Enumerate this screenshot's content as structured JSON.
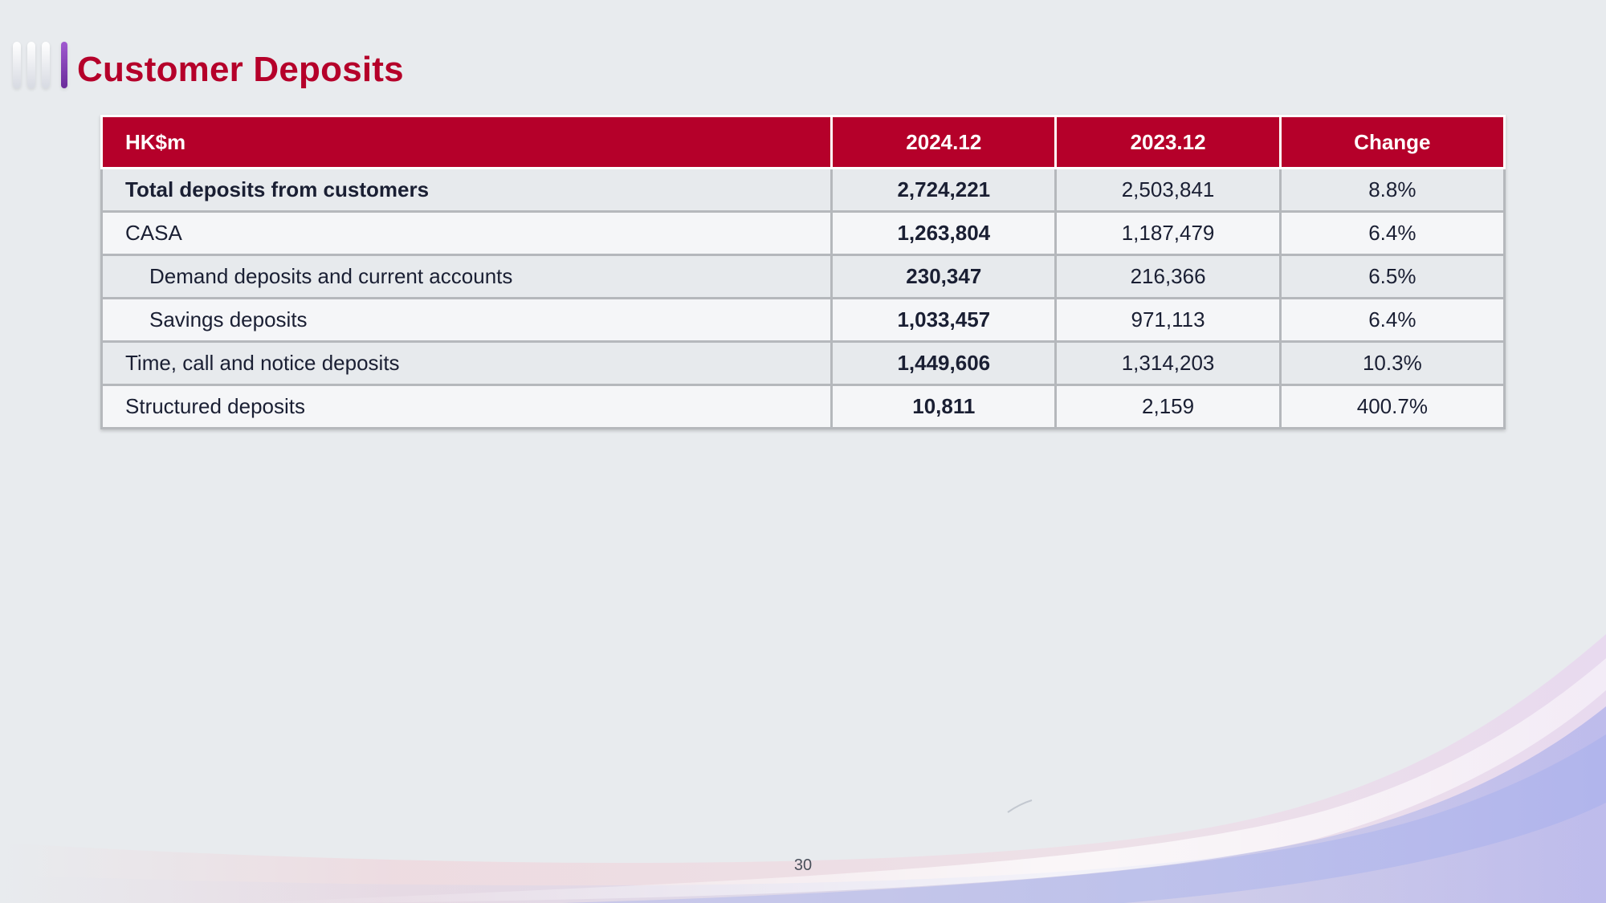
{
  "slide": {
    "title": "Customer Deposits",
    "page_number": "30"
  },
  "table": {
    "headers": [
      "HK$m",
      "2024.12",
      "2023.12",
      "Change"
    ],
    "rows": [
      {
        "label": "Total deposits from customers",
        "v2024": "2,724,221",
        "v2023": "2,503,841",
        "change": "8.8%"
      },
      {
        "label": "CASA",
        "v2024": "1,263,804",
        "v2023": "1,187,479",
        "change": "6.4%"
      },
      {
        "label": "Demand deposits and current accounts",
        "v2024": "230,347",
        "v2023": "216,366",
        "change": "6.5%"
      },
      {
        "label": "Savings deposits",
        "v2024": "1,033,457",
        "v2023": "971,113",
        "change": "6.4%"
      },
      {
        "label": "Time, call and notice deposits",
        "v2024": "1,449,606",
        "v2023": "1,314,203",
        "change": "10.3%"
      },
      {
        "label": "Structured deposits",
        "v2024": "10,811",
        "v2023": "2,159",
        "change": "400.7%"
      }
    ]
  },
  "colors": {
    "accent_red": "#b5002a",
    "accent_purple": "#7b3fb0",
    "background": "#e8ebee"
  }
}
